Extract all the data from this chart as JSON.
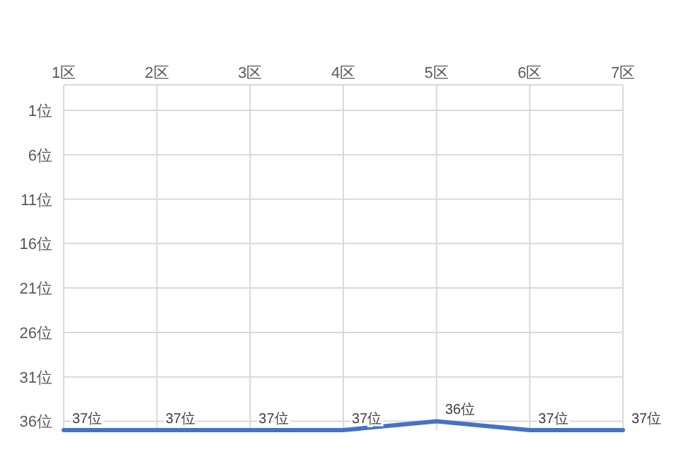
{
  "chart_data": {
    "type": "line",
    "categories": [
      "1区",
      "2区",
      "3区",
      "4区",
      "5区",
      "6区",
      "7区"
    ],
    "series": [
      {
        "color": "#4472c4",
        "values": [
          37,
          37,
          37,
          37,
          36,
          37,
          37
        ],
        "value_labels": [
          "37位",
          "37位",
          "37位",
          "37位",
          "36位",
          "37位",
          "37位"
        ]
      }
    ],
    "ylim": [
      37,
      1
    ],
    "yticks": [
      {
        "value": 1,
        "label": "1位"
      },
      {
        "value": 6,
        "label": "6位"
      },
      {
        "value": 11,
        "label": "11位"
      },
      {
        "value": 16,
        "label": "16位"
      },
      {
        "value": 21,
        "label": "21位"
      },
      {
        "value": 26,
        "label": "26位"
      },
      {
        "value": 31,
        "label": "31位"
      },
      {
        "value": 36,
        "label": "36位"
      }
    ],
    "grid": true,
    "marker": "none",
    "line_style": "solid"
  }
}
